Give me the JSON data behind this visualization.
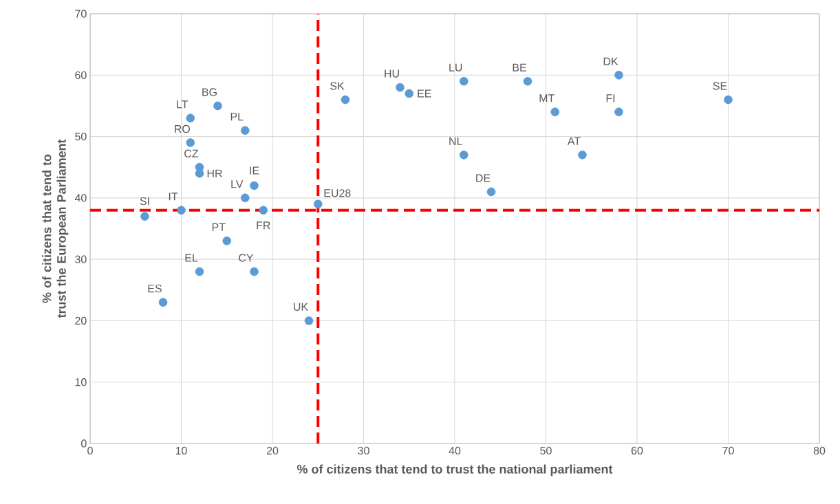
{
  "chart_data": {
    "type": "scatter",
    "xlabel": "% of citizens that tend to trust the national parliament",
    "ylabel": "% of citizens that tend to trust the European Parliament",
    "x": [
      6,
      10,
      8,
      12,
      15,
      18,
      17,
      19,
      18,
      12,
      12,
      11,
      11,
      14,
      17,
      25,
      24,
      28,
      34,
      35,
      41,
      41,
      44,
      48,
      51,
      54,
      58,
      58,
      70
    ],
    "values": [
      37,
      38,
      23,
      28,
      33,
      28,
      40,
      38,
      42,
      44,
      45,
      49,
      53,
      55,
      51,
      39,
      20,
      56,
      58,
      57,
      59,
      47,
      41,
      59,
      54,
      47,
      60,
      54,
      56
    ],
    "color": "#5b9bd5",
    "marker": "circle",
    "grid": true,
    "xlim": [
      0,
      80
    ],
    "xticks": [
      0,
      10,
      20,
      30,
      40,
      50,
      60,
      70,
      80
    ],
    "ylim": [
      0,
      70
    ],
    "yticks": [
      0,
      10,
      20,
      30,
      40,
      50,
      60,
      70
    ],
    "ref_lines": [
      {
        "axis": "x",
        "value": 25,
        "color": "#ff0000",
        "line_style": "dashed"
      },
      {
        "axis": "y",
        "value": 38,
        "color": "#ff0000",
        "line_style": "dashed"
      }
    ],
    "annotations": [
      {
        "text": "SI",
        "x": 6,
        "y": 37
      },
      {
        "text": "IT",
        "x": 10,
        "y": 38
      },
      {
        "text": "ES",
        "x": 8,
        "y": 23
      },
      {
        "text": "EL",
        "x": 12,
        "y": 28
      },
      {
        "text": "PT",
        "x": 15,
        "y": 33
      },
      {
        "text": "CY",
        "x": 18,
        "y": 28
      },
      {
        "text": "LV",
        "x": 17,
        "y": 40
      },
      {
        "text": "FR",
        "x": 19,
        "y": 38
      },
      {
        "text": "IE",
        "x": 18,
        "y": 42
      },
      {
        "text": "HR",
        "x": 12,
        "y": 44
      },
      {
        "text": "CZ",
        "x": 12,
        "y": 45
      },
      {
        "text": "RO",
        "x": 11,
        "y": 49
      },
      {
        "text": "LT",
        "x": 11,
        "y": 53
      },
      {
        "text": "BG",
        "x": 14,
        "y": 55
      },
      {
        "text": "PL",
        "x": 17,
        "y": 51
      },
      {
        "text": "EU28",
        "x": 25,
        "y": 39
      },
      {
        "text": "UK",
        "x": 24,
        "y": 20
      },
      {
        "text": "SK",
        "x": 28,
        "y": 56
      },
      {
        "text": "HU",
        "x": 34,
        "y": 58
      },
      {
        "text": "EE",
        "x": 35,
        "y": 57
      },
      {
        "text": "LU",
        "x": 41,
        "y": 59
      },
      {
        "text": "NL",
        "x": 41,
        "y": 47
      },
      {
        "text": "DE",
        "x": 44,
        "y": 41
      },
      {
        "text": "BE",
        "x": 48,
        "y": 59
      },
      {
        "text": "MT",
        "x": 51,
        "y": 54
      },
      {
        "text": "AT",
        "x": 54,
        "y": 47
      },
      {
        "text": "DK",
        "x": 58,
        "y": 60
      },
      {
        "text": "FI",
        "x": 58,
        "y": 54
      },
      {
        "text": "SE",
        "x": 70,
        "y": 56
      }
    ]
  }
}
